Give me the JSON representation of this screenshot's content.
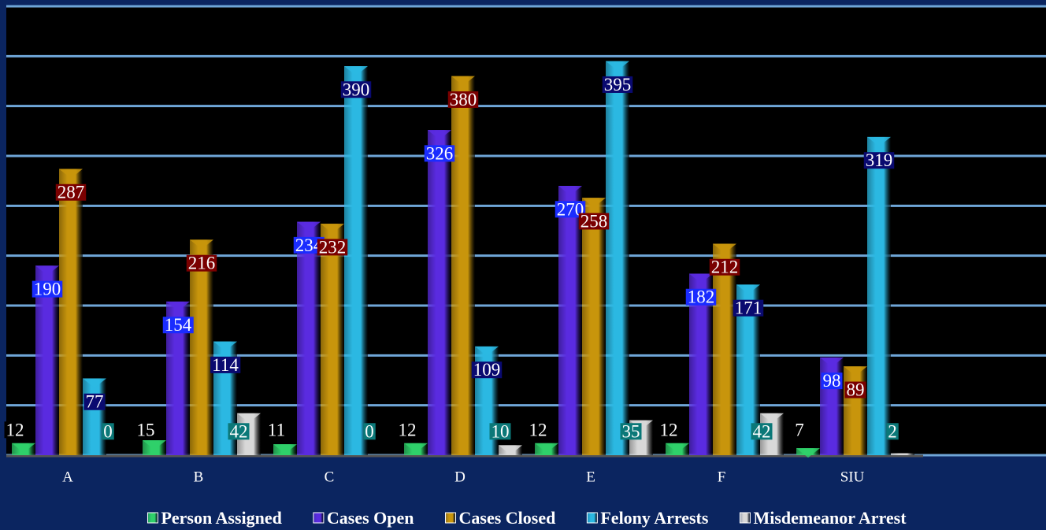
{
  "chart_data": {
    "type": "bar",
    "categories": [
      "A",
      "B",
      "C",
      "D",
      "E",
      "F",
      "SIU"
    ],
    "series": [
      {
        "name": "Person Assigned",
        "color": "#2fd06a",
        "values": [
          12,
          15,
          11,
          12,
          12,
          12,
          7
        ]
      },
      {
        "name": "Cases Open",
        "color": "#5a2be0",
        "values": [
          190,
          154,
          234,
          326,
          270,
          182,
          98
        ]
      },
      {
        "name": "Cases Closed",
        "color": "#c8950c",
        "values": [
          287,
          216,
          232,
          380,
          258,
          212,
          89
        ]
      },
      {
        "name": "Felony Arrests",
        "color": "#2bb8e2",
        "values": [
          77,
          114,
          390,
          109,
          395,
          171,
          319
        ]
      },
      {
        "name": "Misdemeanor Arrest",
        "color": "#d8d8d8",
        "values": [
          0,
          42,
          0,
          10,
          35,
          42,
          2
        ]
      }
    ],
    "ylim": [
      0,
      450
    ],
    "yticks": [
      0,
      50,
      100,
      150,
      200,
      250,
      300,
      350,
      400,
      450
    ],
    "grid": true
  }
}
